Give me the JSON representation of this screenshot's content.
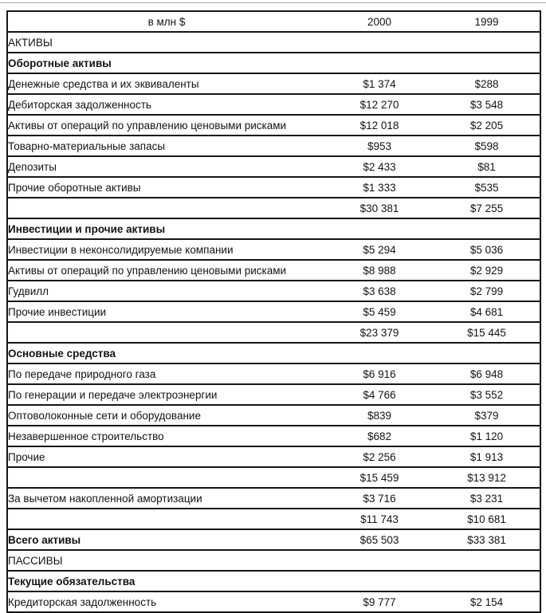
{
  "page": {
    "background": "#ffffff",
    "text_color": "#131313",
    "rule_color": "#161616"
  },
  "table": {
    "header": {
      "units": "в млн $",
      "year_2000": "2000",
      "year_1999": "1999"
    },
    "rows": [
      {
        "label": "АКТИВЫ",
        "style": "section",
        "v2000": "",
        "v1999": ""
      },
      {
        "label": "Оборотные активы",
        "style": "bold",
        "v2000": "",
        "v1999": ""
      },
      {
        "label": "Денежные средства и их эквиваленты",
        "style": "normal",
        "v2000": "$1 374",
        "v1999": "$288"
      },
      {
        "label": "Дебиторская задолженность",
        "style": "normal",
        "v2000": "$12 270",
        "v1999": "$3 548"
      },
      {
        "label": "Активы от операций по управлению ценовыми рисками",
        "style": "normal",
        "v2000": "$12 018",
        "v1999": "$2 205"
      },
      {
        "label": "Товарно-материальные запасы",
        "style": "normal",
        "v2000": "$953",
        "v1999": "$598"
      },
      {
        "label": "Депозиты",
        "style": "normal",
        "v2000": "$2 433",
        "v1999": "$81"
      },
      {
        "label": "Прочие оборотные активы",
        "style": "normal",
        "v2000": "$1 333",
        "v1999": "$535"
      },
      {
        "label": "",
        "style": "total",
        "v2000": "$30 381",
        "v1999": "$7 255"
      },
      {
        "label": "Инвестиции и прочие активы",
        "style": "bold",
        "v2000": "",
        "v1999": ""
      },
      {
        "label": "Инвестиции в неконсолидируемые компании",
        "style": "normal",
        "v2000": "$5 294",
        "v1999": "$5 036"
      },
      {
        "label": "Активы от операций по управлению ценовыми рисками",
        "style": "normal",
        "v2000": "$8 988",
        "v1999": "$2 929"
      },
      {
        "label": "Гудвилл",
        "style": "normal",
        "v2000": "$3 638",
        "v1999": "$2 799"
      },
      {
        "label": "Прочие инвестиции",
        "style": "normal",
        "v2000": "$5 459",
        "v1999": "$4 681"
      },
      {
        "label": "",
        "style": "total",
        "v2000": "$23 379",
        "v1999": "$15 445"
      },
      {
        "label": "Основные средства",
        "style": "bold",
        "v2000": "",
        "v1999": ""
      },
      {
        "label": "По передаче природного газа",
        "style": "normal",
        "v2000": "$6 916",
        "v1999": "$6 948"
      },
      {
        "label": "По генерации и передаче электроэнергии",
        "style": "normal",
        "v2000": "$4 766",
        "v1999": "$3 552"
      },
      {
        "label": "Оптоволоконные сети и оборудование",
        "style": "normal",
        "v2000": "$839",
        "v1999": "$379"
      },
      {
        "label": "Незавершенное строительство",
        "style": "normal",
        "v2000": "$682",
        "v1999": "$1 120"
      },
      {
        "label": "Прочие",
        "style": "normal",
        "v2000": "$2 256",
        "v1999": "$1 913"
      },
      {
        "label": "",
        "style": "total",
        "v2000": "$15 459",
        "v1999": "$13 912"
      },
      {
        "label": "За вычетом накопленной амортизации",
        "style": "normal",
        "v2000": "$3 716",
        "v1999": "$3 231"
      },
      {
        "label": "",
        "style": "total",
        "v2000": "$11 743",
        "v1999": "$10 681"
      },
      {
        "label": "Всего активы",
        "style": "bold",
        "v2000": "$65 503",
        "v1999": "$33 381"
      },
      {
        "label": "ПАССИВЫ",
        "style": "section",
        "v2000": "",
        "v1999": ""
      },
      {
        "label": "Текущие обязательства",
        "style": "bold",
        "v2000": "",
        "v1999": ""
      },
      {
        "label": "Кредиторская задолженность",
        "style": "normal",
        "v2000": "$9 777",
        "v1999": "$2 154"
      }
    ]
  }
}
